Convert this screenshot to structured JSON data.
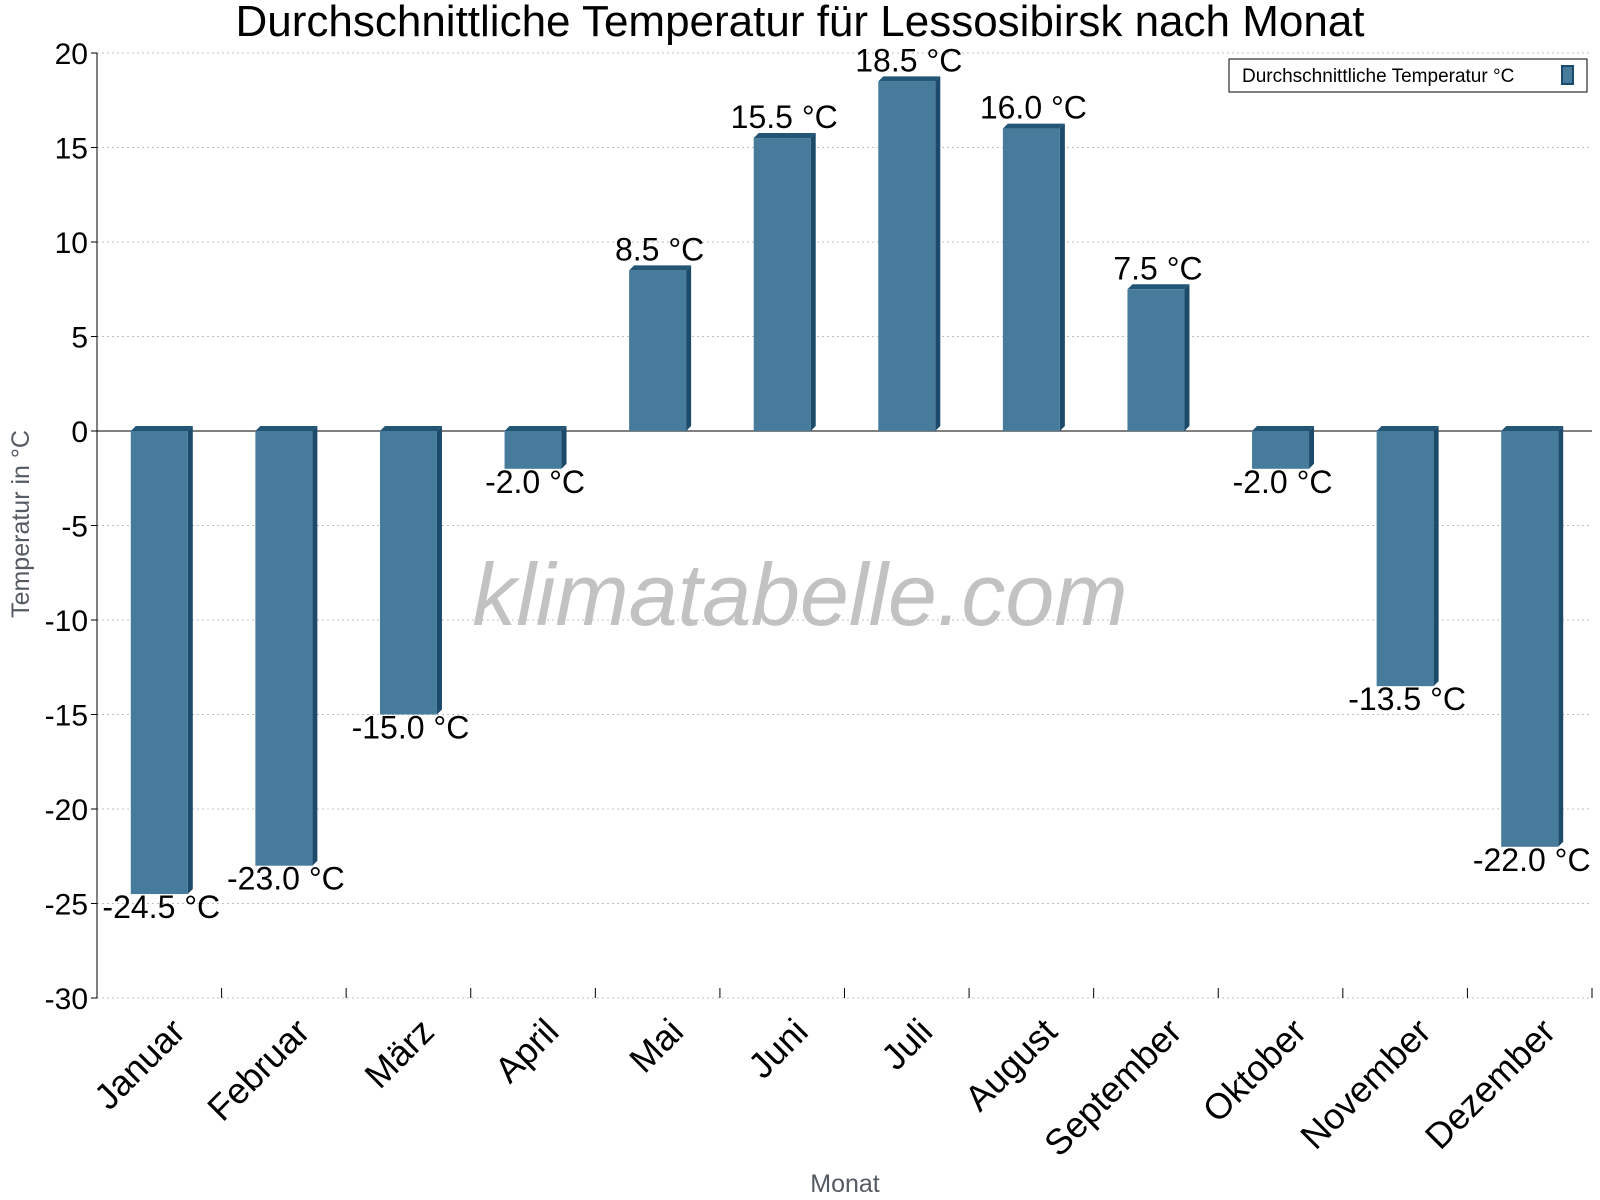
{
  "chart_data": {
    "type": "bar",
    "title": "Durchschnittliche Temperatur für Lessosibirsk nach Monat",
    "xlabel": "Monat",
    "ylabel": "Temperatur in °C",
    "categories": [
      "Januar",
      "Februar",
      "März",
      "April",
      "Mai",
      "Juni",
      "Juli",
      "August",
      "September",
      "Oktober",
      "November",
      "Dezember"
    ],
    "series": [
      {
        "name": "Durchschnittliche Temperatur °C",
        "values": [
          -24.5,
          -23.0,
          -15.0,
          -2.0,
          8.5,
          15.5,
          18.5,
          16.0,
          7.5,
          -2.0,
          -13.5,
          -22.0
        ],
        "data_labels": [
          "-24.5 °C",
          "-23.0 °C",
          "-15.0 °C",
          "-2.0 °C",
          "8.5 °C",
          "15.5 °C",
          "18.5 °C",
          "16.0 °C",
          "7.5 °C",
          "-2.0 °C",
          "-13.5 °C",
          "-22.0 °C"
        ]
      }
    ],
    "ylim": [
      -30,
      20
    ],
    "yticks": [
      "20",
      "15",
      "10",
      "5",
      "0",
      "-5",
      "-10",
      "-15",
      "-20",
      "-25",
      "-30"
    ],
    "grid": true,
    "legend_position": "top-right",
    "watermark": "klimatabelle.com",
    "colors": {
      "bar": "#467b9c",
      "bar_side": "#1c4a6a",
      "bar_top": "#235575",
      "grid": "#bfbfbf",
      "axis": "#000000"
    }
  }
}
